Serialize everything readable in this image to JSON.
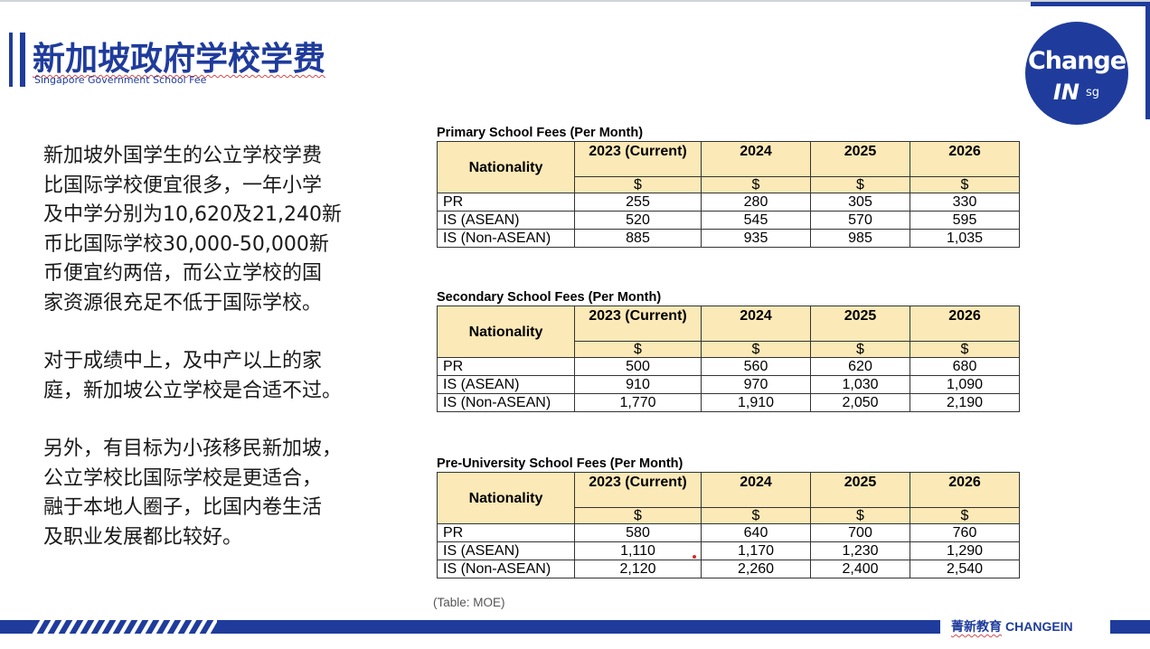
{
  "header": {
    "title": "新加坡政府学校学费",
    "subtitle": "Singapore Government School Fee"
  },
  "logo": {
    "line1": "Change",
    "line2": "IN",
    "line3": "sg"
  },
  "body": {
    "paragraph1": "新加坡外国学生的公立学校学费\n比国际学校便宜很多，一年小学\n及中学分别为10,620及21,240新\n币比国际学校30,000-50,000新\n币便宜约两倍，而公立学校的国\n家资源很充足不低于国际学校。",
    "paragraph2": "对于成绩中上，及中产以上的家\n庭，新加坡公立学校是合适不过。",
    "paragraph3": "另外，有目标为小孩移民新加坡，\n公立学校比国际学校是更适合，\n融于本地人圈子，比国内卷生活\n及职业发展都比较好。"
  },
  "tables": {
    "column_header": "Nationality",
    "years": [
      "2023 (Current)",
      "2024",
      "2025",
      "2026"
    ],
    "currency": [
      "$",
      "$",
      "$",
      "$"
    ],
    "primary": {
      "caption": "Primary School Fees (Per Month)",
      "rows": [
        {
          "label": "PR",
          "values": [
            "255",
            "280",
            "305",
            "330"
          ]
        },
        {
          "label": "IS (ASEAN)",
          "values": [
            "520",
            "545",
            "570",
            "595"
          ]
        },
        {
          "label": "IS (Non-ASEAN)",
          "values": [
            "885",
            "935",
            "985",
            "1,035"
          ]
        }
      ]
    },
    "secondary": {
      "caption": "Secondary School Fees (Per Month)",
      "rows": [
        {
          "label": "PR",
          "values": [
            "500",
            "560",
            "620",
            "680"
          ]
        },
        {
          "label": "IS (ASEAN)",
          "values": [
            "910",
            "970",
            "1,030",
            "1,090"
          ]
        },
        {
          "label": "IS (Non-ASEAN)",
          "values": [
            "1,770",
            "1,910",
            "2,050",
            "2,190"
          ]
        }
      ]
    },
    "preuniversity": {
      "caption": "Pre-University School Fees (Per Month)",
      "rows": [
        {
          "label": "PR",
          "values": [
            "580",
            "640",
            "700",
            "760"
          ]
        },
        {
          "label": "IS (ASEAN)",
          "values": [
            "1,110",
            "1,170",
            "1,230",
            "1,290"
          ]
        },
        {
          "label": "IS (Non-ASEAN)",
          "values": [
            "2,120",
            "2,260",
            "2,400",
            "2,540"
          ]
        }
      ]
    },
    "source": "(Table: MOE)"
  },
  "footer": {
    "brand_cn": "菁新教育",
    "brand_en": "CHANGEIN"
  },
  "colors": {
    "brand_blue": "#1f3c9c",
    "header_fill": "#fbe9b7"
  }
}
